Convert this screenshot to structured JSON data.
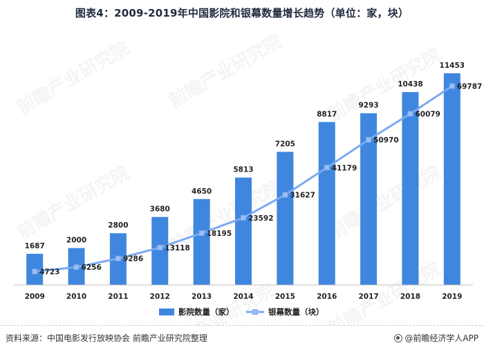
{
  "title": "图表4：2009-2019年中国影院和银幕数量增长趋势（单位：家，块）",
  "footer": {
    "source": "资料来源：中国电影发行放映协会 前瞻产业研究院整理",
    "brand": "@前瞻经济学人APP"
  },
  "watermark": {
    "text": "前瞻产业研究院"
  },
  "colors": {
    "bar": "#3f86de",
    "line": "#7aaaf0",
    "marker": "#9cbff2"
  },
  "chart_data": {
    "type": "bar",
    "categories": [
      "2009",
      "2010",
      "2011",
      "2012",
      "2013",
      "2014",
      "2015",
      "2016",
      "2017",
      "2018",
      "2019"
    ],
    "series": [
      {
        "name": "影院数量（家）",
        "type": "bar",
        "values": [
          1687,
          2000,
          2800,
          3680,
          4650,
          5813,
          7205,
          8817,
          9293,
          10438,
          11453
        ]
      },
      {
        "name": "银幕数量（块）",
        "type": "line",
        "values": [
          4723,
          6256,
          9286,
          13118,
          18195,
          23592,
          31627,
          41179,
          50970,
          60079,
          69787
        ]
      }
    ],
    "bar_axis_max": 12800,
    "line_axis_max": 83000,
    "legend_position": "bottom",
    "grid": false
  }
}
